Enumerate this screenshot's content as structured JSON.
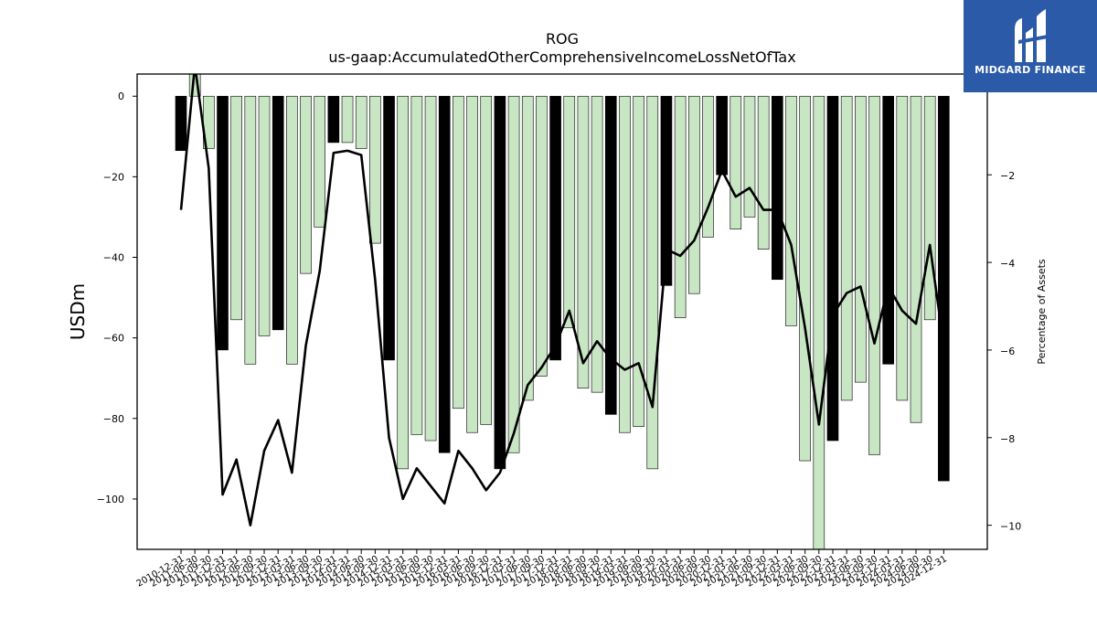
{
  "title_line1": "ROG",
  "title_line2": "us-gaap:AccumulatedOtherComprehensiveIncomeLossNetOfTax",
  "logo": {
    "text": "MIDGARD FINANCE",
    "icon": "midgard-logo-icon",
    "bg": "#2b5aa8"
  },
  "chart_data": {
    "type": "bar",
    "title": "ROG\nus-gaap:AccumulatedOtherComprehensiveIncomeLossNetOfTax",
    "xlabel": "",
    "ylabel": "USDm",
    "y2label": "Percentage of Assets",
    "ylim": [
      -112.5,
      5.5
    ],
    "y2lim": [
      -10.55,
      0.3
    ],
    "yticks": [
      0,
      -20,
      -40,
      -60,
      -80,
      -100
    ],
    "y2ticks": [
      -2,
      -4,
      -6,
      -8,
      -10
    ],
    "grid": false,
    "bar_colors": {
      "annual": "#000000",
      "quarter": "#c8e6c4",
      "edge": "#000000"
    },
    "line_color": "#000000",
    "categories": [
      "2010-12-31",
      "2011-06-30",
      "2011-09-30",
      "2011-12-31",
      "2012-03-31",
      "2012-06-30",
      "2012-09-30",
      "2012-12-31",
      "2013-03-31",
      "2013-06-30",
      "2013-09-30",
      "2013-12-31",
      "2014-03-31",
      "2014-06-30",
      "2014-09-30",
      "2014-12-31",
      "2015-03-31",
      "2015-06-30",
      "2015-09-30",
      "2015-12-31",
      "2016-03-31",
      "2016-06-30",
      "2016-09-30",
      "2016-12-31",
      "2017-03-31",
      "2017-06-30",
      "2017-09-30",
      "2017-12-31",
      "2018-03-31",
      "2018-06-30",
      "2018-09-30",
      "2018-12-31",
      "2019-03-31",
      "2019-06-30",
      "2019-09-30",
      "2019-12-31",
      "2020-03-31",
      "2020-06-30",
      "2020-09-30",
      "2020-12-31",
      "2021-03-31",
      "2021-06-30",
      "2021-09-30",
      "2021-12-31",
      "2022-03-31",
      "2022-06-30",
      "2022-09-30",
      "2022-12-31",
      "2023-03-31",
      "2023-06-30",
      "2023-09-30",
      "2023-12-31",
      "2024-03-31",
      "2024-06-30",
      "2024-09-30",
      "2024-12-31"
    ],
    "series": [
      {
        "type": "bar",
        "values": [
          -13.5,
          7.5,
          -13,
          -63,
          -55.5,
          -66.5,
          -59.5,
          -58,
          -66.5,
          -44,
          -32.5,
          -11.5,
          -11.5,
          -13,
          -36.5,
          -65.5,
          -92.5,
          -84,
          -85.5,
          -88.5,
          -77.5,
          -83.5,
          -81.5,
          -92.5,
          -88.5,
          -75.5,
          -69.5,
          -65.5,
          -57.5,
          -72.5,
          -73.5,
          -79,
          -83.5,
          -82,
          -92.5,
          -47,
          -55,
          -49,
          -35,
          -19.5,
          -33,
          -30,
          -38,
          -45.5,
          -57,
          -90.5,
          -112.5,
          -85.5,
          -75.5,
          -71,
          -89,
          -66.5,
          -75.5,
          -81,
          -55.5,
          -95.5
        ],
        "annual": [
          true,
          false,
          false,
          true,
          false,
          false,
          false,
          true,
          false,
          false,
          false,
          true,
          false,
          false,
          false,
          true,
          false,
          false,
          false,
          true,
          false,
          false,
          false,
          true,
          false,
          false,
          false,
          true,
          false,
          false,
          false,
          true,
          false,
          false,
          false,
          true,
          false,
          false,
          false,
          true,
          false,
          false,
          false,
          true,
          false,
          false,
          false,
          true,
          false,
          false,
          false,
          true,
          false,
          false,
          false,
          true
        ]
      },
      {
        "type": "line",
        "axis": "y2",
        "values": [
          -2.8,
          0.5,
          -1.85,
          -9.3,
          -8.5,
          -10.0,
          -8.3,
          -7.6,
          -8.8,
          -5.9,
          -4.2,
          -1.5,
          -1.45,
          -1.55,
          -4.4,
          -8.0,
          -9.4,
          -8.7,
          -9.1,
          -9.5,
          -8.3,
          -8.7,
          -9.2,
          -8.8,
          -7.9,
          -6.8,
          -6.4,
          -5.9,
          -5.1,
          -6.3,
          -5.8,
          -6.2,
          -6.45,
          -6.3,
          -7.3,
          -3.7,
          -3.85,
          -3.5,
          -2.75,
          -1.9,
          -2.5,
          -2.3,
          -2.8,
          -2.8,
          -3.6,
          -5.5,
          -7.7,
          -5.2,
          -4.7,
          -4.55,
          -5.85,
          -4.55,
          -5.1,
          -5.4,
          -3.6,
          -5.9
        ]
      }
    ]
  }
}
